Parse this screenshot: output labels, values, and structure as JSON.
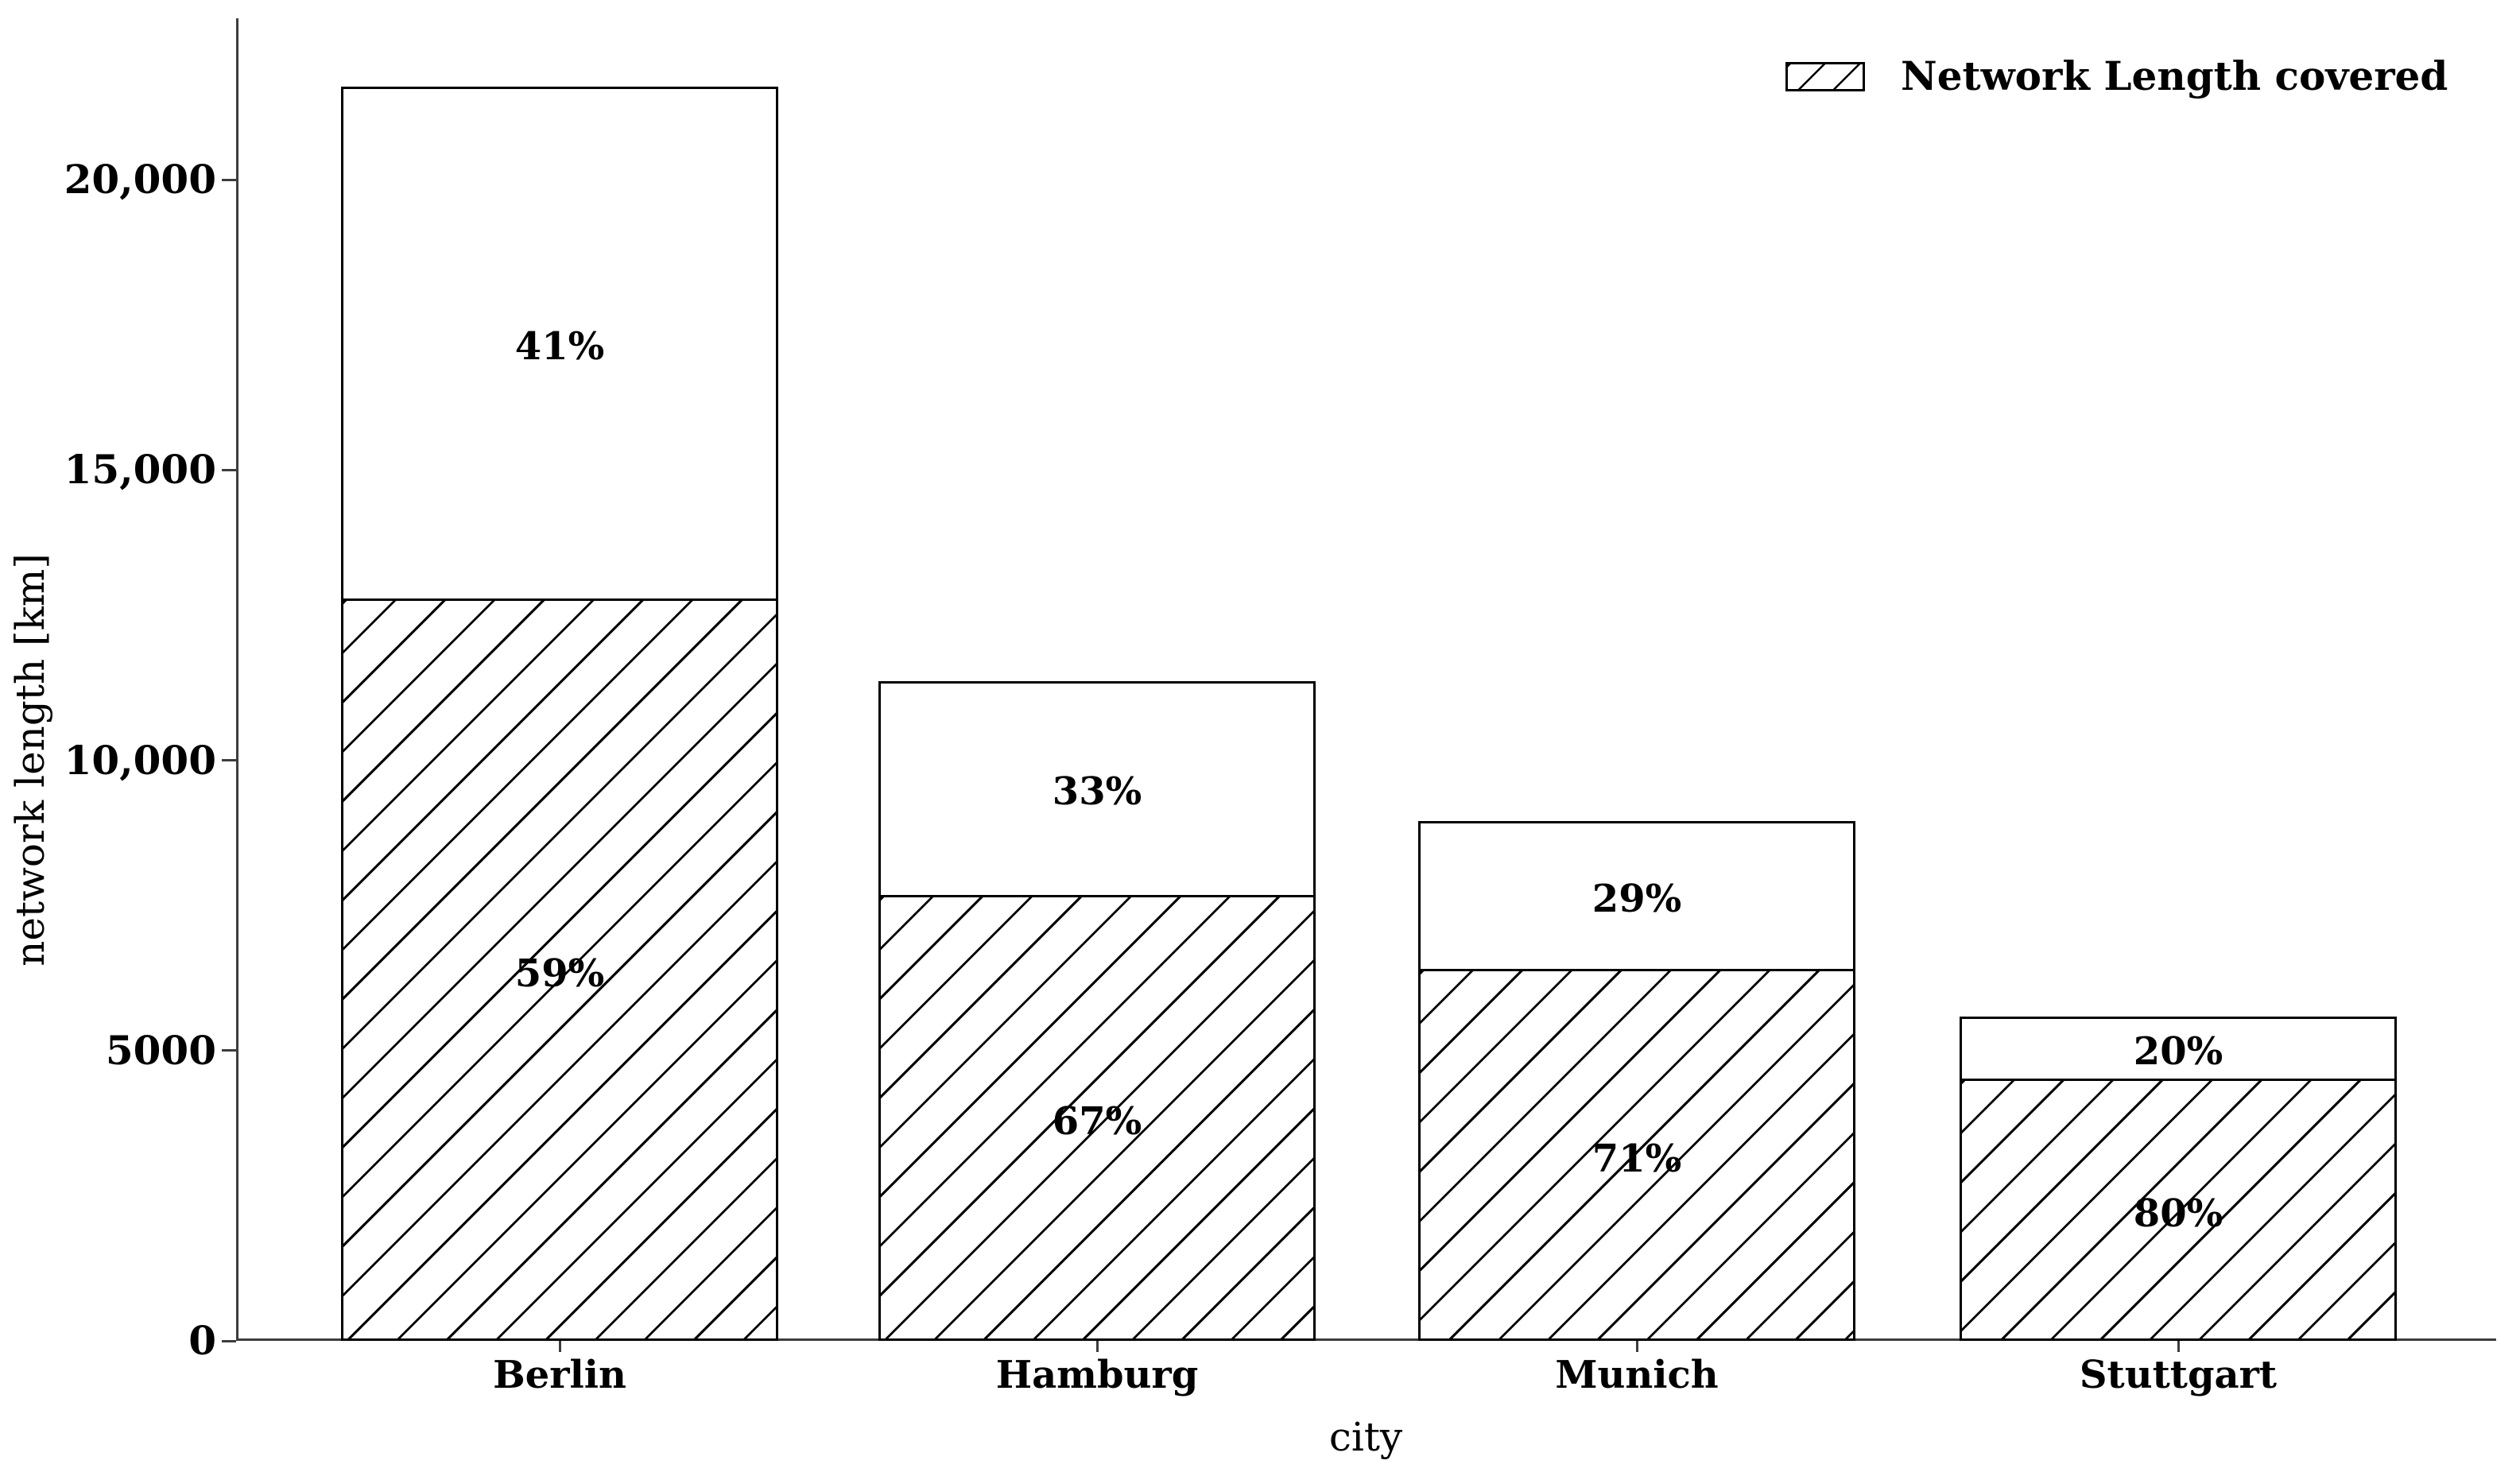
{
  "chart_data": {
    "type": "bar",
    "stacked": true,
    "title": "",
    "xlabel": "city",
    "ylabel": "network length [km]",
    "ylim": [
      0,
      22900
    ],
    "grid": false,
    "legend_position": "upper right",
    "legend": [
      {
        "label": "Network Length covered",
        "hatch": "/"
      }
    ],
    "yticks": [
      {
        "value": 0,
        "label": "0"
      },
      {
        "value": 5000,
        "label": "5000"
      },
      {
        "value": 10000,
        "label": "10,000"
      },
      {
        "value": 15000,
        "label": "15,000"
      },
      {
        "value": 20000,
        "label": "20,000"
      }
    ],
    "categories": [
      "Berlin",
      "Hamburg",
      "Munich",
      "Stuttgart"
    ],
    "bars": [
      {
        "city": "Berlin",
        "total": 21600,
        "covered": 12740,
        "uncovered": 8860,
        "covered_label": "59%",
        "uncovered_label": "41%"
      },
      {
        "city": "Hamburg",
        "total": 11360,
        "covered": 7640,
        "uncovered": 3720,
        "covered_label": "67%",
        "uncovered_label": "33%"
      },
      {
        "city": "Munich",
        "total": 8955,
        "covered": 6365,
        "uncovered": 2590,
        "covered_label": "71%",
        "uncovered_label": "29%"
      },
      {
        "city": "Stuttgart",
        "total": 5586,
        "covered": 4476,
        "uncovered": 1110,
        "covered_label": "80%",
        "uncovered_label": "20%"
      }
    ]
  },
  "colors": {
    "background": "#ffffff",
    "bar_fill": "#ffffff",
    "bar_edge": "#000000",
    "hatch": "#000000",
    "axis": "#3d3d3d",
    "text": "#000000"
  }
}
